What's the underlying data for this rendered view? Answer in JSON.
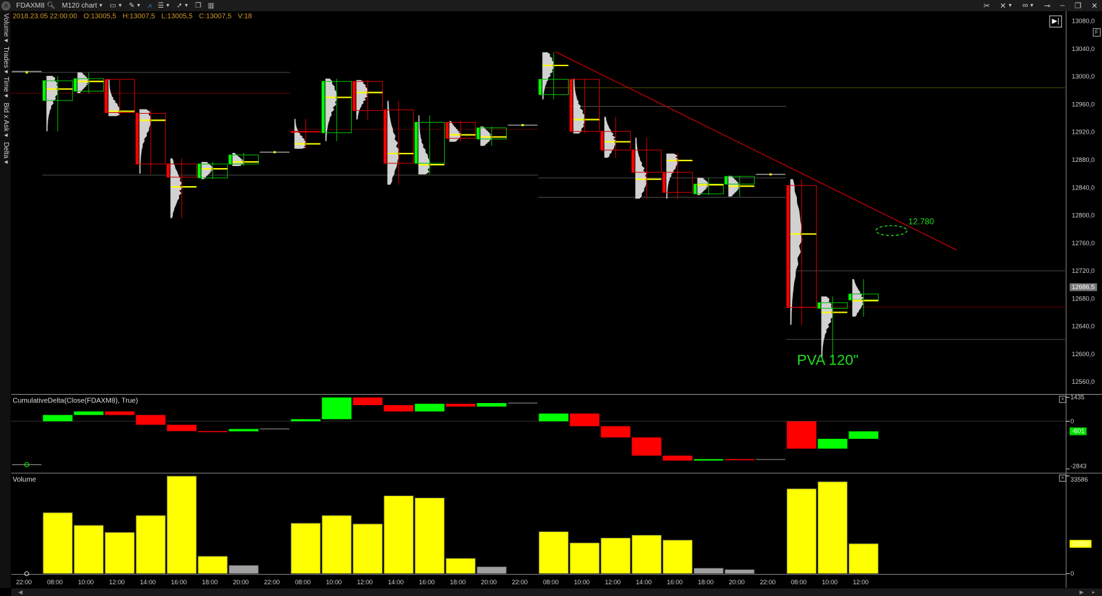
{
  "toolbar": {
    "symbol": "FDAXM8",
    "chart_type": "M120 chart",
    "right_icons": [
      "tools-icon",
      "crosshair-icon",
      "link-icon",
      "pin-icon",
      "minimize-icon",
      "restore-icon",
      "close-icon"
    ]
  },
  "side_tabs": [
    "Volume ▾",
    "Trades ▾",
    "Time ▾",
    "Bid x Ask ▾",
    "Delta ▾"
  ],
  "info_bar": {
    "datetime": "2018.23.05 22:00:00",
    "open": "O:13005,5",
    "high": "H:13007,5",
    "low": "L:13005,5",
    "close": "C:13007,5",
    "volume": "V:18"
  },
  "colors": {
    "up": "#00ff00",
    "down": "#ff0000",
    "poc": "#ffff00",
    "volume": "#ffff00",
    "volume_low": "#a0a0a0",
    "trendline": "#cc0000",
    "annotation": "#22dd22"
  },
  "chart_data": [
    {
      "type": "candlestick",
      "title": "",
      "y_ticks": [
        "13080,0",
        "13040,0",
        "13000,0",
        "12960,0",
        "12920,0",
        "12880,0",
        "12840,0",
        "12800,0",
        "12760,0",
        "12720,0",
        "12680,0",
        "12640,0",
        "12600,0",
        "12560,0"
      ],
      "ylim": [
        12560,
        13080
      ],
      "last_price_label": "12686,5",
      "x_tick_labels": [
        "22:00",
        "08:00",
        "10:00",
        "12:00",
        "14:00",
        "16:00",
        "18:00",
        "20:00",
        "22:00",
        "08:00",
        "10:00",
        "12:00",
        "14:00",
        "16:00",
        "18:00",
        "20:00",
        "22:00",
        "08:00",
        "10:00",
        "12:00",
        "14:00",
        "16:00",
        "18:00",
        "20:00",
        "22:00",
        "08:00",
        "10:00",
        "12:00"
      ],
      "bars": [
        {
          "o": 13005.5,
          "h": 13007.5,
          "l": 13005.5,
          "c": 13007.5,
          "poc": 13006
        },
        {
          "o": 12965.5,
          "h": 13001,
          "l": 12921,
          "c": 12994,
          "poc": 12982
        },
        {
          "o": 12979,
          "h": 13006,
          "l": 12976,
          "c": 12997,
          "poc": 12993
        },
        {
          "o": 12996,
          "h": 12996,
          "l": 12943,
          "c": 12948,
          "poc": 12950
        },
        {
          "o": 12947,
          "h": 12953,
          "l": 12860,
          "c": 12874,
          "poc": 12937
        },
        {
          "o": 12874,
          "h": 12882,
          "l": 12796,
          "c": 12855,
          "poc": 12841
        },
        {
          "o": 12854,
          "h": 12877,
          "l": 12852,
          "c": 12874,
          "poc": 12867
        },
        {
          "o": 12874,
          "h": 12890,
          "l": 12871,
          "c": 12887,
          "poc": 12877
        },
        {
          "o": 12891,
          "h": 12892,
          "l": 12890,
          "c": 12891,
          "poc": 12891
        },
        {
          "o": 12921,
          "h": 12939,
          "l": 12896,
          "c": 12920,
          "poc": 12903
        },
        {
          "o": 12919,
          "h": 12997,
          "l": 12907,
          "c": 12993,
          "poc": 12970
        },
        {
          "o": 12993,
          "h": 12995,
          "l": 12938,
          "c": 12951,
          "poc": 12977
        },
        {
          "o": 12952,
          "h": 12965,
          "l": 12844,
          "c": 12875,
          "poc": 12889
        },
        {
          "o": 12875,
          "h": 12944,
          "l": 12859,
          "c": 12934,
          "poc": 12873
        },
        {
          "o": 12934,
          "h": 12936,
          "l": 12906,
          "c": 12911,
          "poc": 12916
        },
        {
          "o": 12910,
          "h": 12928,
          "l": 12900,
          "c": 12926,
          "poc": 12913
        },
        {
          "o": 12930,
          "h": 12930,
          "l": 12930,
          "c": 12930,
          "poc": 12930
        },
        {
          "o": 12974,
          "h": 13035,
          "l": 12967,
          "c": 12996,
          "poc": 13016
        },
        {
          "o": 12996,
          "h": 12997,
          "l": 12918,
          "c": 12921,
          "poc": 12938
        },
        {
          "o": 12921,
          "h": 12942,
          "l": 12883,
          "c": 12894,
          "poc": 12906
        },
        {
          "o": 12894,
          "h": 12912,
          "l": 12824,
          "c": 12862,
          "poc": 12852
        },
        {
          "o": 12862,
          "h": 12889,
          "l": 12824,
          "c": 12833,
          "poc": 12879
        },
        {
          "o": 12831,
          "h": 12854,
          "l": 12829,
          "c": 12845,
          "poc": 12844
        },
        {
          "o": 12845,
          "h": 12857,
          "l": 12827,
          "c": 12856,
          "poc": 12842
        },
        {
          "o": 12859,
          "h": 12859,
          "l": 12859,
          "c": 12859,
          "poc": 12859
        },
        {
          "o": 12843,
          "h": 12852,
          "l": 12642,
          "c": 12667,
          "poc": 12773
        },
        {
          "o": 12666,
          "h": 12683,
          "l": 12595,
          "c": 12674,
          "poc": 12660
        },
        {
          "o": 12678,
          "h": 12708,
          "l": 12654,
          "c": 12686.5,
          "poc": 12677
        }
      ],
      "levels": [
        {
          "price": 13006,
          "from_bar": 0,
          "to_bar": 9,
          "color": "#4a4a4a"
        },
        {
          "price": 12976,
          "from_bar": 0,
          "to_bar": 9,
          "color": "#5a0000"
        },
        {
          "price": 12858,
          "from_bar": 1,
          "to_bar": 17,
          "color": "#4a4a4a"
        },
        {
          "price": 12924,
          "from_bar": 9,
          "to_bar": 17,
          "color": "#5a0000"
        },
        {
          "price": 12984,
          "from_bar": 17,
          "to_bar": 34,
          "color": "#4a4a00"
        },
        {
          "price": 12957,
          "from_bar": 18,
          "to_bar": 25,
          "color": "#4a4a4a"
        },
        {
          "price": 12854,
          "from_bar": 17,
          "to_bar": 25,
          "color": "#4a4a4a"
        },
        {
          "price": 12826,
          "from_bar": 17,
          "to_bar": 25,
          "color": "#4a4a4a"
        },
        {
          "price": 12720,
          "from_bar": 25,
          "to_bar": 34,
          "color": "#4a4a4a"
        },
        {
          "price": 12668,
          "from_bar": 25,
          "to_bar": 34,
          "color": "#5a0000"
        },
        {
          "price": 12621,
          "from_bar": 25,
          "to_bar": 34,
          "color": "#4a4a4a"
        }
      ],
      "trendline": {
        "from": {
          "bar": 17.55,
          "price": 13036
        },
        "to": {
          "bar": 30.5,
          "price": 12750
        }
      },
      "annotations": {
        "ellipse_label": "12.780",
        "ellipse_price": 12778,
        "ellipse_bar": 28.4,
        "text": "PVA 120\""
      }
    },
    {
      "type": "bar",
      "title": "CumulativeDelta(Close(FDAXM8), True)",
      "ylim": [
        -2843,
        1435
      ],
      "y_ticks": [
        "1435",
        "0",
        "-2843"
      ],
      "last_value_label": "-601",
      "values": [
        [
          -2590,
          -2590
        ],
        [
          0,
          376
        ],
        [
          376,
          585
        ],
        [
          585,
          376
        ],
        [
          376,
          -209
        ],
        [
          -209,
          -585
        ],
        [
          -585,
          -600
        ],
        [
          -600,
          -460
        ],
        [
          -460,
          -460
        ],
        [
          0,
          125
        ],
        [
          125,
          1422
        ],
        [
          1422,
          962
        ],
        [
          962,
          585
        ],
        [
          585,
          1046
        ],
        [
          1046,
          878
        ],
        [
          878,
          1088
        ],
        [
          1088,
          1088
        ],
        [
          0,
          460
        ],
        [
          460,
          -293
        ],
        [
          -293,
          -962
        ],
        [
          -962,
          -2050
        ],
        [
          -2050,
          -2343
        ],
        [
          -2343,
          -2259
        ],
        [
          -2259,
          -2280
        ],
        [
          -2280,
          -2280
        ],
        [
          0,
          -1632
        ],
        [
          -1632,
          -1046
        ],
        [
          -1046,
          -601
        ]
      ]
    },
    {
      "type": "bar",
      "title": "Volume",
      "ylim": [
        0,
        33586
      ],
      "y_ticks": [
        "33586",
        "0"
      ],
      "last_value_label": "10360",
      "values": [
        18,
        21020,
        16672,
        14256,
        20055,
        33586,
        6040,
        2900,
        0,
        17397,
        20055,
        17155,
        26820,
        26095,
        5316,
        2416,
        0,
        14497,
        10632,
        12323,
        13289,
        11598,
        1933,
        1450,
        0,
        29236,
        31652,
        10360
      ],
      "low_volume_bars": [
        7,
        15,
        22,
        23
      ]
    }
  ]
}
